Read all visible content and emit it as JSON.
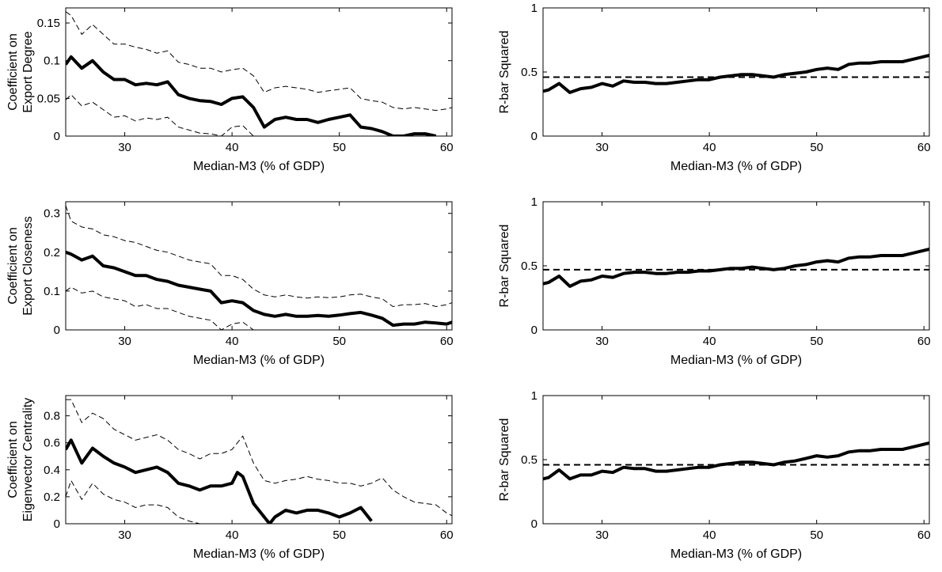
{
  "chart_data": [
    {
      "type": "line",
      "panel": "left-top",
      "xlabel": "Median-M3 (% of GDP)",
      "ylabel": [
        "Coefficient on",
        "Export Degree"
      ],
      "xlim": [
        24.5,
        60.5
      ],
      "ylim": [
        0,
        0.17
      ],
      "xticks": [
        "30",
        "40",
        "50",
        "60"
      ],
      "xtick_values": [
        30,
        40,
        50,
        60
      ],
      "yticks": [
        "0",
        "0.05",
        "0.1",
        "0.15"
      ],
      "ytick_values": [
        0,
        0.05,
        0.1,
        0.15
      ],
      "series": [
        {
          "role": "estimate",
          "style": "thick-solid",
          "x": [
            24.5,
            25,
            26,
            27,
            28,
            29,
            30,
            31,
            32,
            33,
            34,
            35,
            36,
            37,
            38,
            39,
            40,
            41,
            42,
            43,
            44,
            45,
            46,
            47,
            48,
            49,
            50,
            51,
            52,
            53,
            54,
            55,
            56,
            57,
            58,
            59
          ],
          "y": [
            0.095,
            0.105,
            0.09,
            0.1,
            0.085,
            0.075,
            0.075,
            0.068,
            0.07,
            0.068,
            0.072,
            0.055,
            0.05,
            0.047,
            0.046,
            0.042,
            0.05,
            0.052,
            0.038,
            0.012,
            0.022,
            0.025,
            0.022,
            0.022,
            0.018,
            0.022,
            0.025,
            0.028,
            0.012,
            0.01,
            0.006,
            0,
            0,
            0.003,
            0.003,
            0
          ]
        },
        {
          "role": "upper-band",
          "style": "thin-dashed",
          "x": [
            24.5,
            25,
            26,
            27,
            28,
            29,
            30,
            31,
            32,
            33,
            34,
            35,
            36,
            37,
            38,
            39,
            40,
            41,
            42,
            43,
            44,
            45,
            46,
            47,
            48,
            49,
            50,
            51,
            52,
            53,
            54,
            55,
            56,
            57,
            58,
            59,
            60,
            60.5
          ],
          "y": [
            0.165,
            0.16,
            0.135,
            0.148,
            0.135,
            0.122,
            0.122,
            0.118,
            0.115,
            0.11,
            0.113,
            0.098,
            0.095,
            0.09,
            0.09,
            0.085,
            0.088,
            0.09,
            0.08,
            0.058,
            0.064,
            0.066,
            0.064,
            0.062,
            0.058,
            0.06,
            0.062,
            0.064,
            0.05,
            0.047,
            0.045,
            0.038,
            0.036,
            0.038,
            0.036,
            0.034,
            0.036,
            0.038
          ]
        },
        {
          "role": "lower-band",
          "style": "thin-dashed",
          "x": [
            24.5,
            25,
            26,
            27,
            28,
            29,
            30,
            31,
            32,
            33,
            34,
            35,
            36,
            37,
            38,
            39,
            40,
            41,
            42,
            43
          ],
          "y": [
            0.048,
            0.055,
            0.04,
            0.045,
            0.035,
            0.025,
            0.027,
            0.02,
            0.024,
            0.022,
            0.025,
            0.012,
            0.008,
            0.004,
            0.003,
            0,
            0.012,
            0.014,
            0,
            0
          ]
        }
      ]
    },
    {
      "type": "line",
      "panel": "right-top",
      "xlabel": "Median-M3 (% of GDP)",
      "ylabel": [
        "R-bar Squared"
      ],
      "xlim": [
        24.5,
        60.5
      ],
      "ylim": [
        0,
        1
      ],
      "xticks": [
        "30",
        "40",
        "50",
        "60"
      ],
      "xtick_values": [
        30,
        40,
        50,
        60
      ],
      "yticks": [
        "0",
        "0.5",
        "1"
      ],
      "ytick_values": [
        0,
        0.5,
        1
      ],
      "series": [
        {
          "role": "r-bar-squared",
          "style": "thick-solid",
          "x": [
            24.5,
            25,
            26,
            27,
            28,
            29,
            30,
            31,
            32,
            33,
            34,
            35,
            36,
            37,
            38,
            39,
            40,
            41,
            42,
            43,
            44,
            45,
            46,
            47,
            48,
            49,
            50,
            51,
            52,
            53,
            54,
            55,
            56,
            57,
            58,
            59,
            60,
            60.5
          ],
          "y": [
            0.35,
            0.36,
            0.41,
            0.34,
            0.37,
            0.38,
            0.41,
            0.39,
            0.43,
            0.42,
            0.42,
            0.41,
            0.41,
            0.42,
            0.43,
            0.44,
            0.44,
            0.46,
            0.47,
            0.48,
            0.48,
            0.47,
            0.46,
            0.48,
            0.49,
            0.5,
            0.52,
            0.53,
            0.52,
            0.56,
            0.57,
            0.57,
            0.58,
            0.58,
            0.58,
            0.6,
            0.62,
            0.63
          ]
        },
        {
          "role": "reference",
          "style": "dashed",
          "x": [
            24.5,
            60.5
          ],
          "y": [
            0.46,
            0.46
          ]
        }
      ]
    },
    {
      "type": "line",
      "panel": "left-middle",
      "xlabel": "Median-M3 (% of GDP)",
      "ylabel": [
        "Coefficient on",
        "Export Closeness"
      ],
      "xlim": [
        24.5,
        60.5
      ],
      "ylim": [
        0,
        0.33
      ],
      "xticks": [
        "30",
        "40",
        "50",
        "60"
      ],
      "xtick_values": [
        30,
        40,
        50,
        60
      ],
      "yticks": [
        "0",
        "0.1",
        "0.2",
        "0.3"
      ],
      "ytick_values": [
        0,
        0.1,
        0.2,
        0.3
      ],
      "series": [
        {
          "role": "estimate",
          "style": "thick-solid",
          "x": [
            24.5,
            25,
            26,
            27,
            28,
            29,
            30,
            31,
            32,
            33,
            34,
            35,
            36,
            37,
            38,
            39,
            40,
            41,
            42,
            43,
            44,
            45,
            46,
            47,
            48,
            49,
            50,
            51,
            52,
            53,
            54,
            55,
            56,
            57,
            58,
            59,
            60,
            60.5
          ],
          "y": [
            0.2,
            0.195,
            0.18,
            0.19,
            0.165,
            0.16,
            0.15,
            0.14,
            0.14,
            0.13,
            0.125,
            0.115,
            0.11,
            0.105,
            0.1,
            0.07,
            0.075,
            0.07,
            0.05,
            0.04,
            0.035,
            0.04,
            0.035,
            0.035,
            0.037,
            0.035,
            0.038,
            0.042,
            0.045,
            0.038,
            0.03,
            0.012,
            0.015,
            0.015,
            0.02,
            0.018,
            0.015,
            0.02
          ]
        },
        {
          "role": "upper-band",
          "style": "thin-dashed",
          "x": [
            24.5,
            25,
            26,
            27,
            28,
            29,
            30,
            31,
            32,
            33,
            34,
            35,
            36,
            37,
            38,
            39,
            40,
            41,
            42,
            43,
            44,
            45,
            46,
            47,
            48,
            49,
            50,
            51,
            52,
            53,
            54,
            55,
            56,
            57,
            58,
            59,
            60,
            60.5
          ],
          "y": [
            0.32,
            0.28,
            0.265,
            0.26,
            0.245,
            0.24,
            0.23,
            0.225,
            0.215,
            0.205,
            0.2,
            0.19,
            0.18,
            0.175,
            0.17,
            0.14,
            0.14,
            0.13,
            0.105,
            0.09,
            0.085,
            0.09,
            0.085,
            0.082,
            0.085,
            0.083,
            0.085,
            0.09,
            0.092,
            0.085,
            0.08,
            0.06,
            0.065,
            0.065,
            0.068,
            0.06,
            0.065,
            0.07
          ]
        },
        {
          "role": "lower-band",
          "style": "thin-dashed",
          "x": [
            24.5,
            25,
            26,
            27,
            28,
            29,
            30,
            31,
            32,
            33,
            34,
            35,
            36,
            37,
            38,
            39,
            40,
            41,
            42,
            43
          ],
          "y": [
            0.1,
            0.11,
            0.095,
            0.1,
            0.085,
            0.08,
            0.075,
            0.06,
            0.065,
            0.055,
            0.055,
            0.045,
            0.035,
            0.03,
            0.025,
            0,
            0.015,
            0.02,
            0,
            0
          ]
        }
      ]
    },
    {
      "type": "line",
      "panel": "right-middle",
      "xlabel": "Median-M3 (% of GDP)",
      "ylabel": [
        "R-bar Squared"
      ],
      "xlim": [
        24.5,
        60.5
      ],
      "ylim": [
        0,
        1
      ],
      "xticks": [
        "30",
        "40",
        "50",
        "60"
      ],
      "xtick_values": [
        30,
        40,
        50,
        60
      ],
      "yticks": [
        "0",
        "0.5",
        "1"
      ],
      "ytick_values": [
        0,
        0.5,
        1
      ],
      "series": [
        {
          "role": "r-bar-squared",
          "style": "thick-solid",
          "x": [
            24.5,
            25,
            26,
            27,
            28,
            29,
            30,
            31,
            32,
            33,
            34,
            35,
            36,
            37,
            38,
            39,
            40,
            41,
            42,
            43,
            44,
            45,
            46,
            47,
            48,
            49,
            50,
            51,
            52,
            53,
            54,
            55,
            56,
            57,
            58,
            59,
            60,
            60.5
          ],
          "y": [
            0.36,
            0.37,
            0.42,
            0.34,
            0.38,
            0.39,
            0.42,
            0.41,
            0.44,
            0.45,
            0.45,
            0.44,
            0.44,
            0.45,
            0.45,
            0.46,
            0.46,
            0.47,
            0.48,
            0.48,
            0.49,
            0.48,
            0.47,
            0.48,
            0.5,
            0.51,
            0.53,
            0.54,
            0.53,
            0.56,
            0.57,
            0.57,
            0.58,
            0.58,
            0.58,
            0.6,
            0.62,
            0.63
          ]
        },
        {
          "role": "reference",
          "style": "dashed",
          "x": [
            24.5,
            60.5
          ],
          "y": [
            0.47,
            0.47
          ]
        }
      ]
    },
    {
      "type": "line",
      "panel": "left-bottom",
      "xlabel": "Median-M3 (% of GDP)",
      "ylabel": [
        "Coefficient on",
        "Eigenvector Centrality"
      ],
      "xlim": [
        24.5,
        60.5
      ],
      "ylim": [
        0,
        0.95
      ],
      "xticks": [
        "30",
        "40",
        "50",
        "60"
      ],
      "xtick_values": [
        30,
        40,
        50,
        60
      ],
      "yticks": [
        "0",
        "0.2",
        "0.4",
        "0.6",
        "0.8"
      ],
      "ytick_values": [
        0,
        0.2,
        0.4,
        0.6,
        0.8
      ],
      "series": [
        {
          "role": "estimate",
          "style": "thick-solid",
          "x": [
            24.5,
            25,
            26,
            27,
            28,
            29,
            30,
            31,
            32,
            33,
            34,
            35,
            36,
            37,
            38,
            39,
            40,
            40.5,
            41,
            42,
            43,
            43.5,
            44,
            45,
            46,
            47,
            48,
            49,
            50,
            51,
            52,
            53
          ],
          "y": [
            0.55,
            0.62,
            0.45,
            0.56,
            0.5,
            0.45,
            0.42,
            0.38,
            0.4,
            0.42,
            0.38,
            0.3,
            0.28,
            0.25,
            0.28,
            0.28,
            0.3,
            0.38,
            0.35,
            0.15,
            0.05,
            0.0,
            0.05,
            0.1,
            0.08,
            0.1,
            0.1,
            0.08,
            0.05,
            0.08,
            0.12,
            0.02
          ]
        },
        {
          "role": "upper-band",
          "style": "thin-dashed",
          "x": [
            24.5,
            25,
            26,
            27,
            28,
            29,
            30,
            31,
            32,
            33,
            34,
            35,
            36,
            37,
            38,
            39,
            40,
            41,
            42,
            43,
            44,
            45,
            46,
            47,
            48,
            49,
            50,
            51,
            52,
            53,
            54,
            55,
            56,
            57,
            58,
            59,
            60,
            60.5
          ],
          "y": [
            0.92,
            0.92,
            0.75,
            0.82,
            0.78,
            0.7,
            0.66,
            0.62,
            0.64,
            0.66,
            0.62,
            0.55,
            0.52,
            0.48,
            0.52,
            0.52,
            0.55,
            0.65,
            0.45,
            0.32,
            0.3,
            0.32,
            0.33,
            0.35,
            0.33,
            0.32,
            0.3,
            0.3,
            0.28,
            0.3,
            0.34,
            0.25,
            0.2,
            0.16,
            0.15,
            0.14,
            0.08,
            0.06
          ]
        },
        {
          "role": "lower-band",
          "style": "thin-dashed",
          "x": [
            24.5,
            25,
            26,
            27,
            28,
            29,
            30,
            31,
            32,
            33,
            34,
            35,
            36,
            37
          ],
          "y": [
            0.2,
            0.32,
            0.18,
            0.3,
            0.22,
            0.18,
            0.16,
            0.12,
            0.14,
            0.14,
            0.12,
            0.05,
            0.02,
            0
          ]
        }
      ]
    },
    {
      "type": "line",
      "panel": "right-bottom",
      "xlabel": "Median-M3 (% of GDP)",
      "ylabel": [
        "R-bar Squared"
      ],
      "xlim": [
        24.5,
        60.5
      ],
      "ylim": [
        0,
        1
      ],
      "xticks": [
        "30",
        "40",
        "50",
        "60"
      ],
      "xtick_values": [
        30,
        40,
        50,
        60
      ],
      "yticks": [
        "0",
        "0.5",
        "1"
      ],
      "ytick_values": [
        0,
        0.5,
        1
      ],
      "series": [
        {
          "role": "r-bar-squared",
          "style": "thick-solid",
          "x": [
            24.5,
            25,
            26,
            27,
            28,
            29,
            30,
            31,
            32,
            33,
            34,
            35,
            36,
            37,
            38,
            39,
            40,
            41,
            42,
            43,
            44,
            45,
            46,
            47,
            48,
            49,
            50,
            51,
            52,
            53,
            54,
            55,
            56,
            57,
            58,
            59,
            60,
            60.5
          ],
          "y": [
            0.35,
            0.36,
            0.42,
            0.35,
            0.38,
            0.38,
            0.41,
            0.4,
            0.44,
            0.43,
            0.43,
            0.41,
            0.41,
            0.42,
            0.43,
            0.44,
            0.44,
            0.46,
            0.47,
            0.48,
            0.48,
            0.47,
            0.46,
            0.48,
            0.49,
            0.51,
            0.53,
            0.52,
            0.53,
            0.56,
            0.57,
            0.57,
            0.58,
            0.58,
            0.58,
            0.6,
            0.62,
            0.63
          ]
        },
        {
          "role": "reference",
          "style": "dashed",
          "x": [
            24.5,
            60.5
          ],
          "y": [
            0.46,
            0.46
          ]
        }
      ]
    }
  ]
}
